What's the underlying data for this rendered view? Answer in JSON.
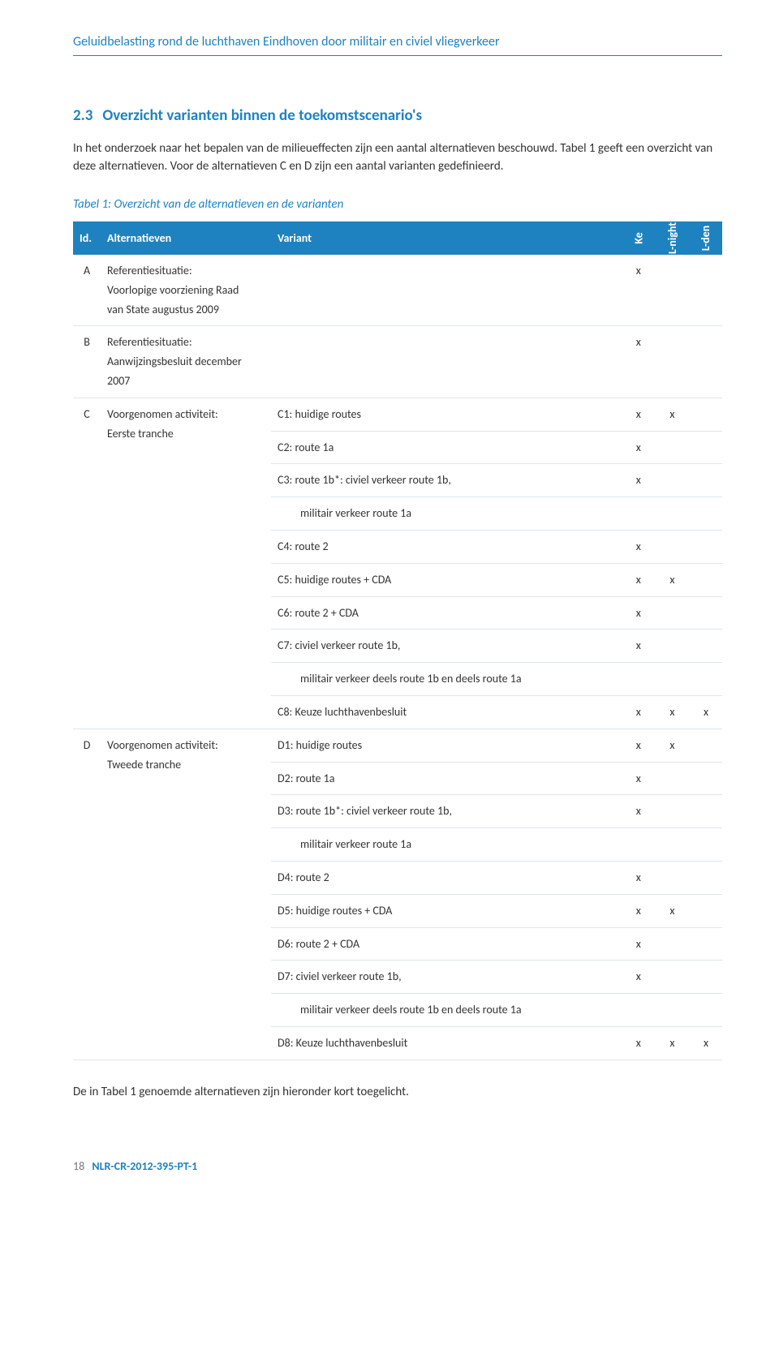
{
  "header": {
    "title": "Geluidbelasting rond de luchthaven Eindhoven door militair en civiel vliegverkeer"
  },
  "section": {
    "number": "2.3",
    "title": "Overzicht varianten binnen de toekomstscenario's",
    "para": "In het onderzoek naar het bepalen van de milieueffecten zijn een aantal alternatieven beschouwd. Tabel 1 geeft een overzicht van deze alternatieven. Voor de alternatieven C en D zijn een aantal varianten gedefinieerd."
  },
  "table": {
    "caption": "Tabel 1:  Overzicht van de alternatieven en de varianten",
    "head": {
      "id": "Id.",
      "alt": "Alternatieven",
      "variant": "Variant",
      "col_ke": "Ke",
      "col_lnight": "L-night",
      "col_lden": "L-den"
    },
    "rows": [
      {
        "id": "A",
        "alt_lines": [
          "Referentiesituatie:",
          "Voorlopige voorziening Raad",
          "van State augustus 2009"
        ],
        "variant_lines": [],
        "ke": "x",
        "lnight": "",
        "lden": ""
      },
      {
        "id": "B",
        "alt_lines": [
          "Referentiesituatie:",
          "Aanwijzingsbesluit december",
          "2007"
        ],
        "variant_lines": [],
        "ke": "x",
        "lnight": "",
        "lden": ""
      },
      {
        "id": "C",
        "alt_lines": [
          "Voorgenomen activiteit:",
          "Eerste tranche"
        ],
        "variants": [
          {
            "text": "C1: huidige routes",
            "ke": "x",
            "lnight": "x",
            "lden": ""
          },
          {
            "text": "C2: route 1a",
            "ke": "x",
            "lnight": "",
            "lden": ""
          },
          {
            "text": "C3: route 1b*: civiel verkeer route 1b,",
            "ke": "x",
            "lnight": "",
            "lden": ""
          },
          {
            "indent": true,
            "text": "militair verkeer route 1a",
            "ke": "",
            "lnight": "",
            "lden": ""
          },
          {
            "text": "C4: route 2",
            "ke": "x",
            "lnight": "",
            "lden": ""
          },
          {
            "text": "C5: huidige routes + CDA",
            "ke": "x",
            "lnight": "x",
            "lden": ""
          },
          {
            "text": "C6: route 2 + CDA",
            "ke": "x",
            "lnight": "",
            "lden": ""
          },
          {
            "text": "C7: civiel verkeer route 1b,",
            "ke": "x",
            "lnight": "",
            "lden": ""
          },
          {
            "indent": true,
            "text": "militair verkeer deels route 1b en deels route 1a",
            "ke": "",
            "lnight": "",
            "lden": ""
          },
          {
            "text": "C8: Keuze luchthavenbesluit",
            "ke": "x",
            "lnight": "x",
            "lden": "x"
          }
        ]
      },
      {
        "id": "D",
        "alt_lines": [
          "Voorgenomen activiteit:",
          "Tweede tranche"
        ],
        "variants": [
          {
            "text": "D1: huidige routes",
            "ke": "x",
            "lnight": "x",
            "lden": ""
          },
          {
            "text": "D2: route 1a",
            "ke": "x",
            "lnight": "",
            "lden": ""
          },
          {
            "text": "D3: route 1b*: civiel verkeer route 1b,",
            "ke": "x",
            "lnight": "",
            "lden": ""
          },
          {
            "indent": true,
            "text": "militair verkeer route 1a",
            "ke": "",
            "lnight": "",
            "lden": ""
          },
          {
            "text": "D4: route 2",
            "ke": "x",
            "lnight": "",
            "lden": ""
          },
          {
            "text": "D5: huidige routes + CDA",
            "ke": "x",
            "lnight": "x",
            "lden": ""
          },
          {
            "text": "D6: route 2 + CDA",
            "ke": "x",
            "lnight": "",
            "lden": ""
          },
          {
            "text": "D7: civiel verkeer route 1b,",
            "ke": "x",
            "lnight": "",
            "lden": ""
          },
          {
            "indent": true,
            "text": "militair verkeer deels route 1b en deels route 1a",
            "ke": "",
            "lnight": "",
            "lden": ""
          },
          {
            "text": "D8: Keuze luchthavenbesluit",
            "ke": "x",
            "lnight": "x",
            "lden": "x"
          }
        ]
      }
    ]
  },
  "closing": "De in Tabel 1 genoemde alternatieven zijn hieronder kort toegelicht.",
  "footer": {
    "pagenum": "18",
    "docref": "NLR-CR-2012-395-PT-1"
  }
}
